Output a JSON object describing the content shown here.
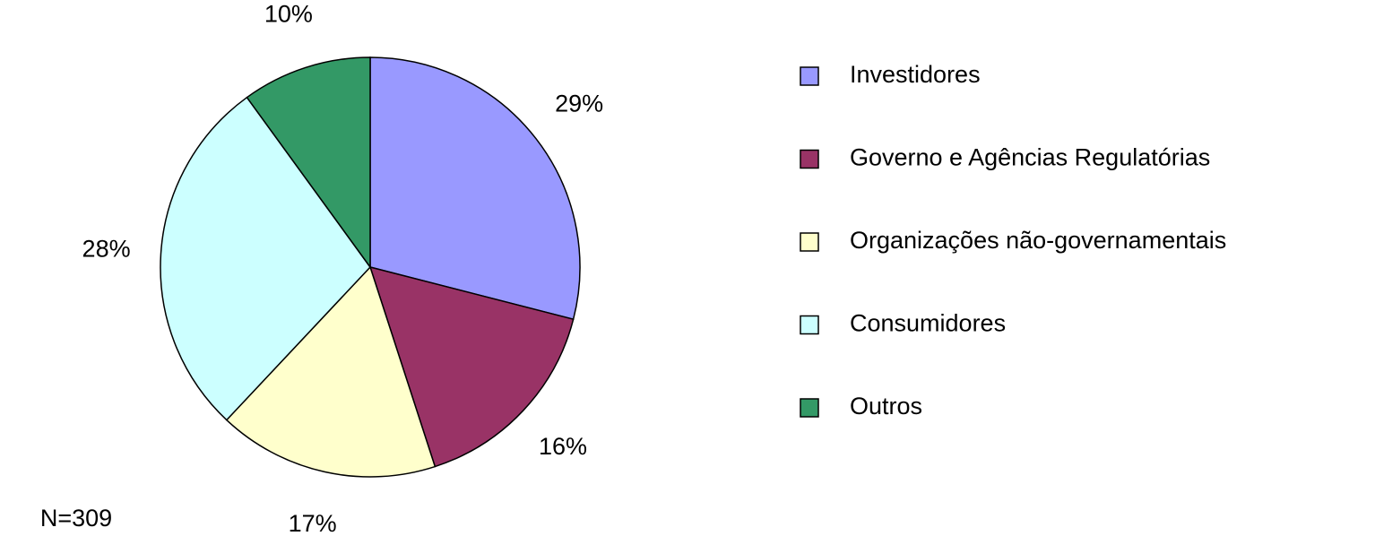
{
  "chart_data": {
    "type": "pie",
    "categories": [
      "Investidores",
      "Governo e Agências Regulatórias",
      "Organizações não-governamentais",
      "Consumidores",
      "Outros"
    ],
    "values": [
      29,
      16,
      17,
      28,
      10
    ],
    "value_labels": [
      "29%",
      "16%",
      "17%",
      "28%",
      "10%"
    ],
    "colors": [
      "#9999ff",
      "#993366",
      "#ffffcc",
      "#ccffff",
      "#339966"
    ],
    "annotation": "N=309",
    "legend": "right"
  }
}
